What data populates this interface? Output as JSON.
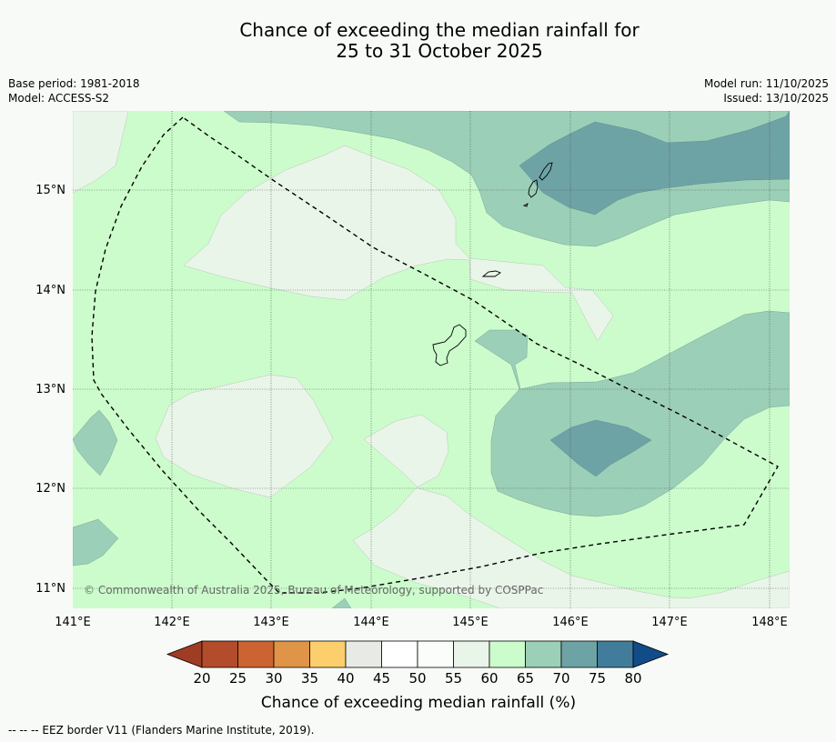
{
  "title": {
    "line1": "Chance of exceeding the median rainfall for",
    "line2": "25 to 31 October 2025"
  },
  "meta": {
    "base_period": "Base period: 1981-2018",
    "model": "Model: ACCESS-S2",
    "model_run": "Model run: 11/10/2025",
    "issued": "Issued: 13/10/2025"
  },
  "map": {
    "lat_labels": [
      "15°N",
      "14°N",
      "13°N",
      "12°N",
      "11°N"
    ],
    "lon_labels": [
      "141°E",
      "142°E",
      "143°E",
      "144°E",
      "145°E",
      "146°E",
      "147°E",
      "148°E"
    ],
    "copyright": "© Commonwealth of Australia 2025, Bureau of Meteorology, supported by COSPPac",
    "colors": {
      "c40_45": "#e8ebe5",
      "c45_50": "#ffffff",
      "c50_55": "#fbfdfa",
      "c55_60": "#eaf5e9",
      "c60_65": "#ccfccc",
      "c65_70": "#9ccfb7",
      "c70_75": "#6ea3a6",
      "c75_80": "#417c9a"
    }
  },
  "colorbar": {
    "ticks": [
      "20",
      "25",
      "30",
      "35",
      "40",
      "45",
      "50",
      "55",
      "60",
      "65",
      "70",
      "75",
      "80"
    ],
    "colors": [
      "#9e3d24",
      "#b24c2a",
      "#cc6332",
      "#e09448",
      "#fdce6c",
      "#e8ebe5",
      "#ffffff",
      "#fbfdfa",
      "#eaf5e9",
      "#ccfccc",
      "#9ccfb7",
      "#6ea3a6",
      "#417c9a",
      "#124c88"
    ],
    "title": "Chance of exceeding median rainfall (%)"
  },
  "footer": "-- -- -- EEZ border V11 (Flanders Marine Institute, 2019)."
}
